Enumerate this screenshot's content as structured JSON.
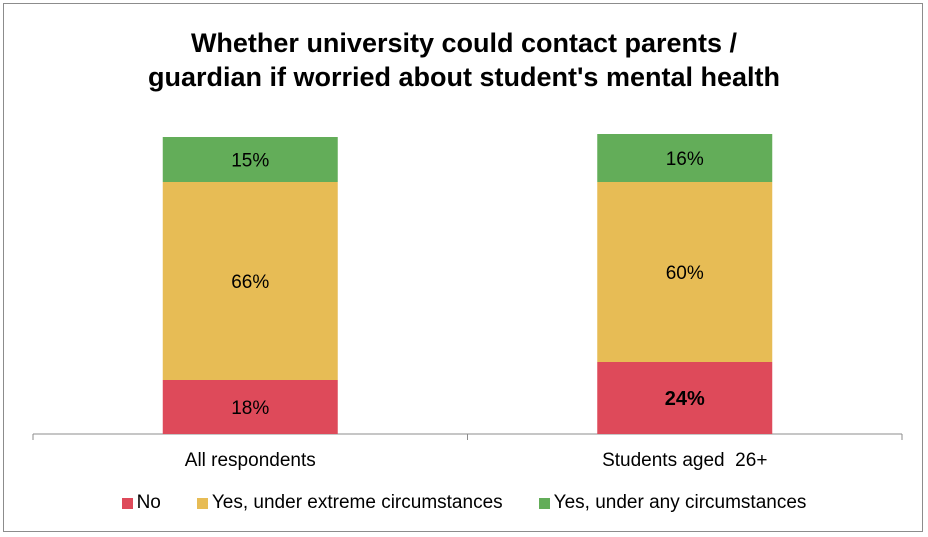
{
  "chart_data": {
    "type": "bar",
    "stacked": true,
    "title": [
      "Whether university could contact parents /",
      "guardian if worried about student's mental health"
    ],
    "categories": [
      "All respondents",
      "Students aged  26+"
    ],
    "series": [
      {
        "name": "No",
        "values": [
          18,
          24
        ],
        "labels": [
          "18%",
          "24%"
        ],
        "color": "#de4a5a",
        "bold": [
          false,
          true
        ]
      },
      {
        "name": "Yes, under extreme circumstances",
        "values": [
          66,
          60
        ],
        "labels": [
          "66%",
          "60%"
        ],
        "color": "#e7bc55",
        "bold": [
          false,
          false
        ]
      },
      {
        "name": "Yes, under any circumstances",
        "values": [
          15,
          16
        ],
        "labels": [
          "15%",
          "16%"
        ],
        "color": "#63ad59",
        "bold": [
          false,
          false
        ]
      }
    ],
    "ylim": [
      0,
      100
    ],
    "grid": false,
    "legend_position": "bottom"
  }
}
